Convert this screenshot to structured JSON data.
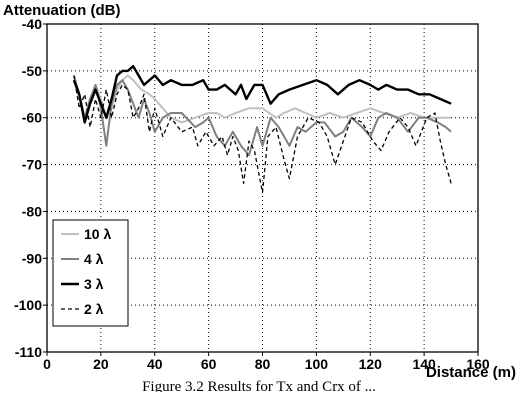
{
  "chart_data": {
    "type": "line",
    "ylabel": "Attenuation (dB)",
    "xlabel": "Distance (m)",
    "xlim": [
      0,
      160
    ],
    "ylim": [
      -110,
      -40
    ],
    "x_ticks": [
      0,
      20,
      40,
      60,
      80,
      100,
      120,
      140,
      160
    ],
    "y_ticks": [
      -40,
      -50,
      -60,
      -70,
      -80,
      -90,
      -100,
      -110
    ],
    "grid": true,
    "grid_style": "dotted",
    "legend_position": "bottom-left",
    "series": [
      {
        "name": "10 λ",
        "color": "#c0c0c0",
        "dash": "",
        "width": 2,
        "points": [
          [
            10,
            -52
          ],
          [
            12,
            -56
          ],
          [
            14,
            -60
          ],
          [
            16,
            -57
          ],
          [
            18,
            -53
          ],
          [
            20,
            -56
          ],
          [
            22,
            -60
          ],
          [
            24,
            -58
          ],
          [
            26,
            -54
          ],
          [
            28,
            -52
          ],
          [
            30,
            -51
          ],
          [
            32,
            -52
          ],
          [
            35,
            -54
          ],
          [
            38,
            -55
          ],
          [
            40,
            -56
          ],
          [
            43,
            -58
          ],
          [
            46,
            -60
          ],
          [
            50,
            -61
          ],
          [
            55,
            -60
          ],
          [
            60,
            -59
          ],
          [
            63,
            -59
          ],
          [
            66,
            -60
          ],
          [
            70,
            -59
          ],
          [
            75,
            -58
          ],
          [
            80,
            -58
          ],
          [
            85,
            -60
          ],
          [
            88,
            -59
          ],
          [
            92,
            -58
          ],
          [
            96,
            -59
          ],
          [
            100,
            -60
          ],
          [
            105,
            -59
          ],
          [
            110,
            -60
          ],
          [
            115,
            -59
          ],
          [
            120,
            -58
          ],
          [
            125,
            -59
          ],
          [
            130,
            -60
          ],
          [
            135,
            -59
          ],
          [
            140,
            -60
          ],
          [
            145,
            -60
          ],
          [
            150,
            -60
          ]
        ]
      },
      {
        "name": "4 λ",
        "color": "#808080",
        "dash": "",
        "width": 2,
        "points": [
          [
            10,
            -51
          ],
          [
            12,
            -55
          ],
          [
            14,
            -60
          ],
          [
            16,
            -56
          ],
          [
            18,
            -53
          ],
          [
            20,
            -58
          ],
          [
            22,
            -66
          ],
          [
            24,
            -57
          ],
          [
            26,
            -53
          ],
          [
            28,
            -52
          ],
          [
            30,
            -54
          ],
          [
            32,
            -57
          ],
          [
            34,
            -60
          ],
          [
            36,
            -56
          ],
          [
            38,
            -59
          ],
          [
            40,
            -63
          ],
          [
            43,
            -60
          ],
          [
            46,
            -59
          ],
          [
            50,
            -59
          ],
          [
            55,
            -62
          ],
          [
            58,
            -61
          ],
          [
            60,
            -60
          ],
          [
            63,
            -64
          ],
          [
            66,
            -66
          ],
          [
            69,
            -63
          ],
          [
            72,
            -66
          ],
          [
            75,
            -68
          ],
          [
            78,
            -62
          ],
          [
            80,
            -66
          ],
          [
            83,
            -60
          ],
          [
            86,
            -62
          ],
          [
            90,
            -66
          ],
          [
            93,
            -62
          ],
          [
            96,
            -63
          ],
          [
            100,
            -61
          ],
          [
            103,
            -61
          ],
          [
            107,
            -64
          ],
          [
            110,
            -63
          ],
          [
            113,
            -60
          ],
          [
            117,
            -62
          ],
          [
            120,
            -64
          ],
          [
            123,
            -60
          ],
          [
            126,
            -59
          ],
          [
            130,
            -60
          ],
          [
            134,
            -63
          ],
          [
            138,
            -60
          ],
          [
            141,
            -60
          ],
          [
            145,
            -61
          ],
          [
            148,
            -62
          ],
          [
            150,
            -63
          ]
        ]
      },
      {
        "name": "3 λ",
        "color": "#000000",
        "dash": "",
        "width": 2.4,
        "points": [
          [
            10,
            -52
          ],
          [
            12,
            -55
          ],
          [
            14,
            -61
          ],
          [
            16,
            -57
          ],
          [
            18,
            -54
          ],
          [
            20,
            -57
          ],
          [
            22,
            -60
          ],
          [
            24,
            -56
          ],
          [
            26,
            -51
          ],
          [
            28,
            -50
          ],
          [
            30,
            -50
          ],
          [
            32,
            -49
          ],
          [
            34,
            -51
          ],
          [
            36,
            -53
          ],
          [
            38,
            -52
          ],
          [
            40,
            -51
          ],
          [
            43,
            -53
          ],
          [
            46,
            -52
          ],
          [
            50,
            -53
          ],
          [
            54,
            -53
          ],
          [
            58,
            -52
          ],
          [
            60,
            -54
          ],
          [
            63,
            -54
          ],
          [
            66,
            -53
          ],
          [
            70,
            -55
          ],
          [
            72,
            -53
          ],
          [
            74,
            -56
          ],
          [
            77,
            -53
          ],
          [
            80,
            -53
          ],
          [
            83,
            -57
          ],
          [
            86,
            -55
          ],
          [
            90,
            -54
          ],
          [
            95,
            -53
          ],
          [
            100,
            -52
          ],
          [
            104,
            -53
          ],
          [
            108,
            -55
          ],
          [
            112,
            -53
          ],
          [
            116,
            -52
          ],
          [
            120,
            -53
          ],
          [
            123,
            -54
          ],
          [
            126,
            -53
          ],
          [
            130,
            -54
          ],
          [
            134,
            -54
          ],
          [
            138,
            -55
          ],
          [
            142,
            -55
          ],
          [
            146,
            -56
          ],
          [
            150,
            -57
          ]
        ]
      },
      {
        "name": "2 λ",
        "color": "#000000",
        "dash": "4,3",
        "width": 1.3,
        "points": [
          [
            10,
            -51
          ],
          [
            12,
            -58
          ],
          [
            14,
            -55
          ],
          [
            16,
            -62
          ],
          [
            18,
            -56
          ],
          [
            20,
            -60
          ],
          [
            22,
            -54
          ],
          [
            24,
            -60
          ],
          [
            26,
            -55
          ],
          [
            28,
            -53
          ],
          [
            30,
            -54
          ],
          [
            32,
            -60
          ],
          [
            34,
            -58
          ],
          [
            36,
            -55
          ],
          [
            38,
            -63
          ],
          [
            40,
            -58
          ],
          [
            43,
            -64
          ],
          [
            46,
            -60
          ],
          [
            50,
            -63
          ],
          [
            54,
            -62
          ],
          [
            56,
            -66
          ],
          [
            59,
            -63
          ],
          [
            62,
            -66
          ],
          [
            65,
            -64
          ],
          [
            67,
            -68
          ],
          [
            69,
            -64
          ],
          [
            71,
            -67
          ],
          [
            73,
            -74
          ],
          [
            75,
            -65
          ],
          [
            77,
            -67
          ],
          [
            80,
            -76
          ],
          [
            82,
            -64
          ],
          [
            85,
            -62
          ],
          [
            88,
            -69
          ],
          [
            90,
            -73
          ],
          [
            93,
            -64
          ],
          [
            97,
            -60
          ],
          [
            101,
            -61
          ],
          [
            104,
            -64
          ],
          [
            107,
            -70
          ],
          [
            110,
            -65
          ],
          [
            113,
            -60
          ],
          [
            117,
            -61
          ],
          [
            121,
            -65
          ],
          [
            124,
            -67
          ],
          [
            127,
            -63
          ],
          [
            131,
            -60
          ],
          [
            134,
            -62
          ],
          [
            137,
            -66
          ],
          [
            141,
            -60
          ],
          [
            144,
            -59
          ],
          [
            146,
            -65
          ],
          [
            148,
            -70
          ],
          [
            150,
            -74
          ]
        ]
      }
    ]
  },
  "caption": "Figure 3.2  Results for Tx and Crx of ... "
}
